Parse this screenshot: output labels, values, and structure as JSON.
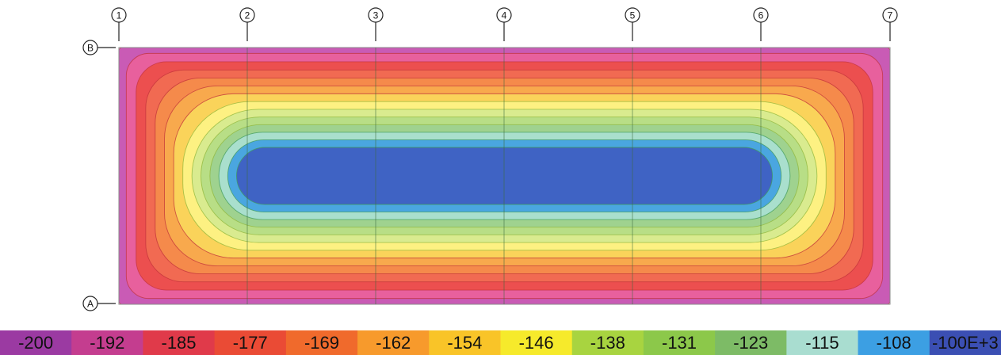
{
  "gridlines": {
    "columns": [
      "1",
      "2",
      "3",
      "4",
      "5",
      "6",
      "7"
    ],
    "rows": [
      "B",
      "A"
    ]
  },
  "contour_levels": [
    -200,
    -192,
    -185,
    -177,
    -169,
    -162,
    -154,
    -146,
    -138,
    -131,
    -123,
    -115,
    -108,
    -100
  ],
  "band_colors": [
    "#c95bb5",
    "#e8609d",
    "#ec4f4f",
    "#f16a52",
    "#f58a4b",
    "#f8a94d",
    "#fad35a",
    "#fdf182",
    "#d9eb8f",
    "#b8de86",
    "#9fd28f",
    "#a9dfcd",
    "#4aa6e0",
    "#3f63c4"
  ],
  "legend": {
    "labels": [
      "-200",
      "-192",
      "-185",
      "-177",
      "-169",
      "-162",
      "-154",
      "-146",
      "-138",
      "-131",
      "-123",
      "-115",
      "-108",
      "-100E+3"
    ],
    "colors": [
      "#9b3aa2",
      "#c43d8f",
      "#e03a4a",
      "#ea4b35",
      "#f06a2c",
      "#f79a2c",
      "#f9c428",
      "#f6ea2b",
      "#a8d440",
      "#8cc84a",
      "#7dbb66",
      "#a9ddd0",
      "#3c9fe3",
      "#3b4fb3"
    ]
  }
}
